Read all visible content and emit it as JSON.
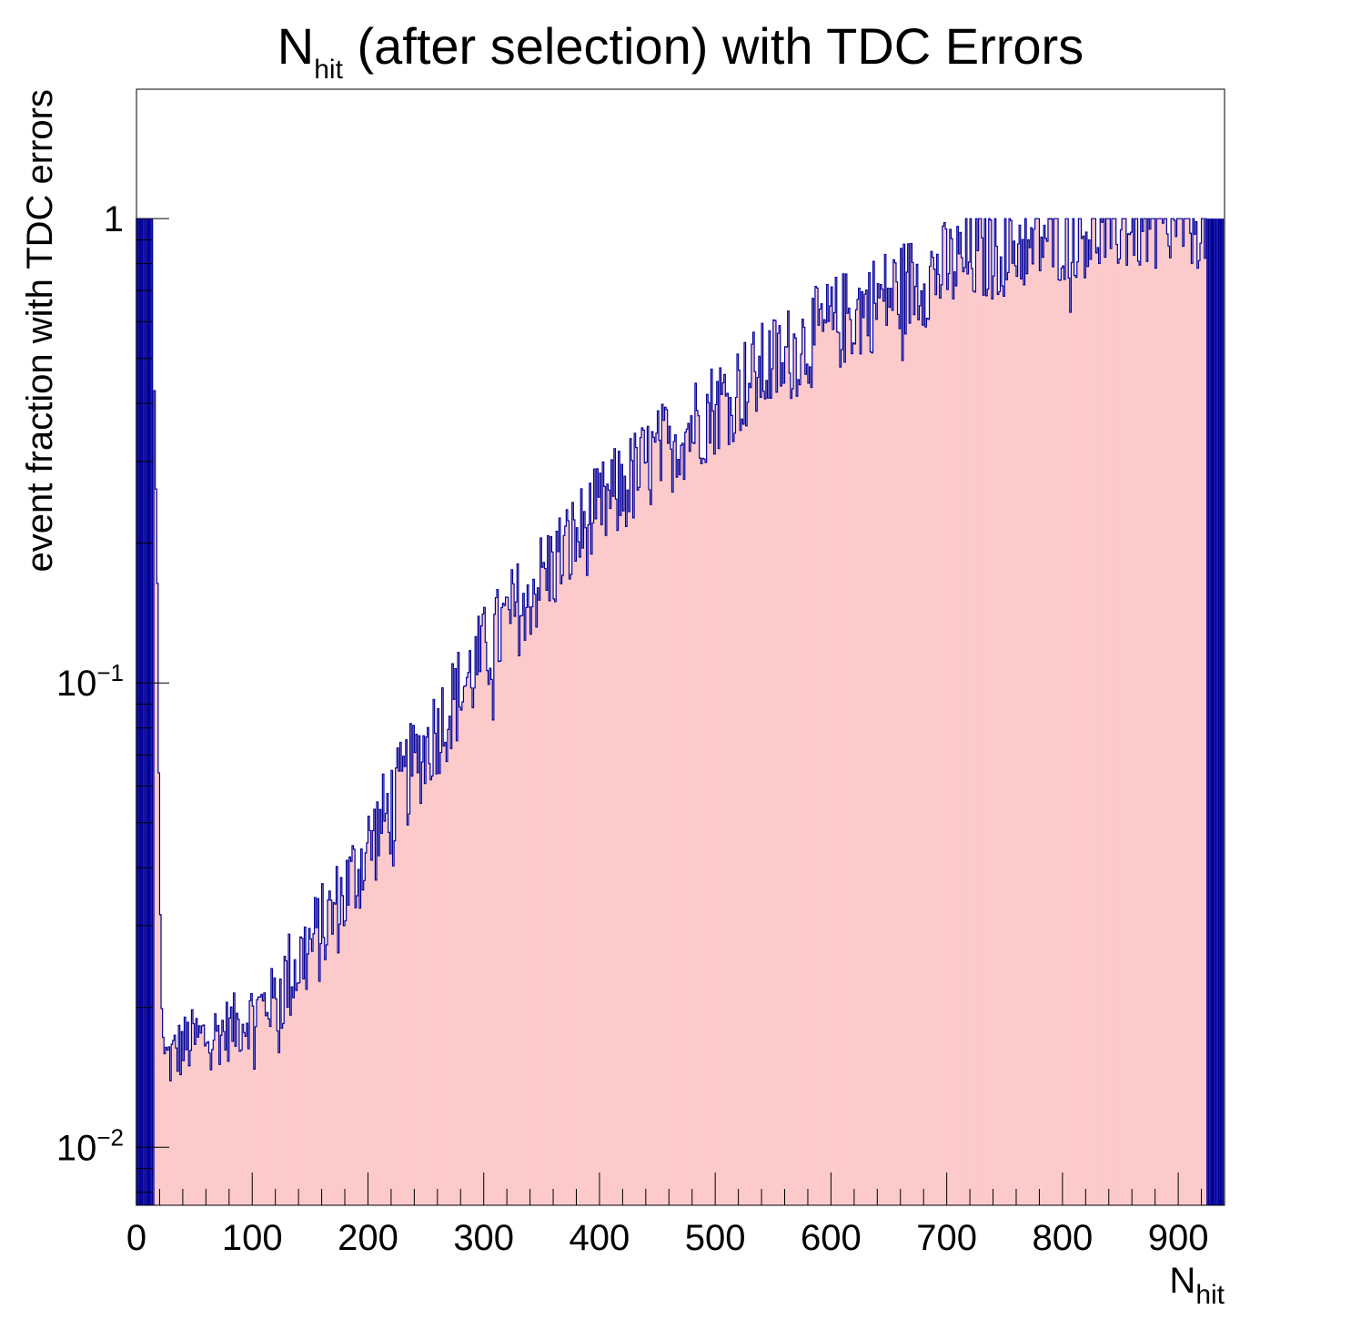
{
  "chart_data": {
    "type": "bar",
    "title": {
      "main": "N",
      "sub": "hit",
      "rest": " (after selection) with TDC Errors"
    },
    "xlabel": {
      "main": "N",
      "sub": "hit"
    },
    "ylabel": "event fraction with TDC errors",
    "x_ticks": [
      "0",
      "100",
      "200",
      "300",
      "400",
      "500",
      "600",
      "700",
      "800",
      "900"
    ],
    "y_ticks": [
      {
        "value": 0.01,
        "base": "10",
        "exp": "−2"
      },
      {
        "value": 0.1,
        "base": "10",
        "exp": "−1"
      },
      {
        "value": 1,
        "base": "1",
        "exp": ""
      }
    ],
    "xlim": [
      0,
      940
    ],
    "ylim": [
      0.0075,
      1.9
    ],
    "y_scale": "log",
    "grid": false,
    "fill_color": "#fccacb",
    "line_color": "#000099",
    "bin_width": 1.25,
    "anchors": [
      [
        0,
        1
      ],
      [
        14,
        1
      ],
      [
        16,
        0.35
      ],
      [
        18,
        0.18
      ],
      [
        20,
        0.04
      ],
      [
        22,
        0.019
      ],
      [
        24,
        0.016
      ],
      [
        26,
        0.0155
      ],
      [
        30,
        0.0155
      ],
      [
        40,
        0.0165
      ],
      [
        50,
        0.017
      ],
      [
        60,
        0.0172
      ],
      [
        75,
        0.0178
      ],
      [
        90,
        0.0185
      ],
      [
        100,
        0.0195
      ],
      [
        120,
        0.021
      ],
      [
        140,
        0.025
      ],
      [
        160,
        0.029
      ],
      [
        180,
        0.035
      ],
      [
        200,
        0.044
      ],
      [
        220,
        0.054
      ],
      [
        240,
        0.066
      ],
      [
        260,
        0.08
      ],
      [
        280,
        0.096
      ],
      [
        300,
        0.115
      ],
      [
        320,
        0.135
      ],
      [
        340,
        0.157
      ],
      [
        360,
        0.18
      ],
      [
        380,
        0.205
      ],
      [
        400,
        0.233
      ],
      [
        420,
        0.262
      ],
      [
        440,
        0.292
      ],
      [
        460,
        0.325
      ],
      [
        480,
        0.36
      ],
      [
        500,
        0.395
      ],
      [
        520,
        0.43
      ],
      [
        540,
        0.468
      ],
      [
        560,
        0.505
      ],
      [
        580,
        0.545
      ],
      [
        600,
        0.585
      ],
      [
        620,
        0.625
      ],
      [
        640,
        0.665
      ],
      [
        660,
        0.705
      ],
      [
        680,
        0.745
      ],
      [
        700,
        0.78
      ],
      [
        720,
        0.815
      ],
      [
        740,
        0.85
      ],
      [
        760,
        0.88
      ],
      [
        780,
        0.905
      ],
      [
        800,
        0.93
      ],
      [
        820,
        0.95
      ],
      [
        840,
        0.965
      ],
      [
        860,
        0.975
      ],
      [
        880,
        0.985
      ],
      [
        900,
        0.99
      ],
      [
        920,
        0.995
      ],
      [
        925,
        1
      ],
      [
        940,
        1
      ]
    ],
    "noise_amplitude": 0.09,
    "empty_bins_x": [
      925,
      940
    ]
  }
}
